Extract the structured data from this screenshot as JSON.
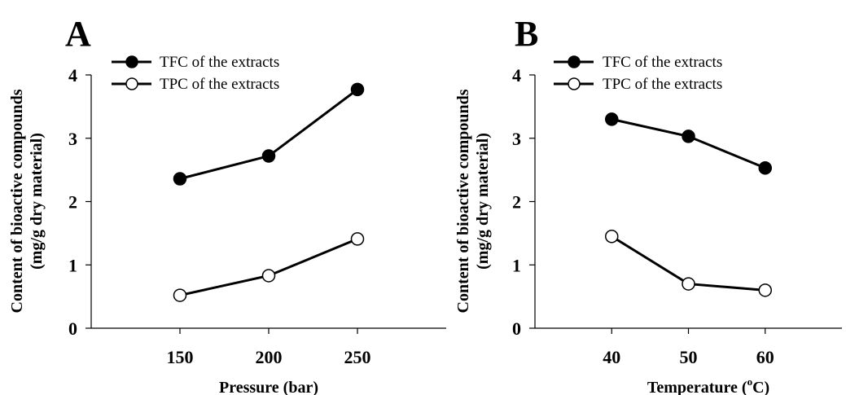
{
  "chart_data": [
    {
      "type": "line",
      "panel_label": "A",
      "x": [
        150,
        200,
        250
      ],
      "xticks": [
        "150",
        "200",
        "250"
      ],
      "xlim": [
        100,
        300
      ],
      "ylim": [
        0,
        4
      ],
      "yticks": [
        "0",
        "1",
        "2",
        "3",
        "4"
      ],
      "xlabel": "Pressure (bar)",
      "ylabel_line1": "Content of bioactive compounds",
      "ylabel_line2": "(mg/g dry material)",
      "legend_position": "top-left",
      "grid": false,
      "series": [
        {
          "name": "TFC of the extracts",
          "marker": "filled-circle",
          "values": [
            2.36,
            2.72,
            3.77
          ]
        },
        {
          "name": "TPC of the extracts",
          "marker": "open-circle",
          "values": [
            0.52,
            0.83,
            1.41
          ]
        }
      ]
    },
    {
      "type": "line",
      "panel_label": "B",
      "x": [
        40,
        50,
        60
      ],
      "xticks": [
        "40",
        "50",
        "60"
      ],
      "xlim": [
        30,
        70
      ],
      "ylim": [
        0,
        4
      ],
      "yticks": [
        "0",
        "1",
        "2",
        "3",
        "4"
      ],
      "xlabel_prefix": "Temperature (",
      "xlabel_sup": "o",
      "xlabel_suffix": "C)",
      "ylabel_line1": "Content of bioactive compounds",
      "ylabel_line2": "(mg/g dry material)",
      "legend_position": "top-left",
      "grid": false,
      "series": [
        {
          "name": "TFC of the extracts",
          "marker": "filled-circle",
          "values": [
            3.3,
            3.03,
            2.53
          ]
        },
        {
          "name": "TPC of the extracts",
          "marker": "open-circle",
          "values": [
            1.45,
            0.7,
            0.6
          ]
        }
      ]
    }
  ],
  "colors": {
    "line": "#000000",
    "filled_marker": "#000000",
    "open_marker": "#ffffff"
  }
}
